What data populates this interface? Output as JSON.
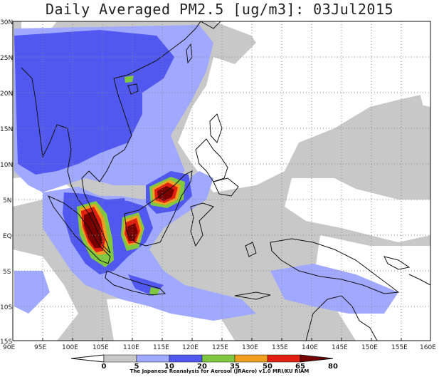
{
  "title": "Daily Averaged PM2.5 [ug/m3]: 03Jul2015",
  "credit": "The Japanese Reanalysis for Aerosol (JRAero) v1.0 MRI/KU RIAM",
  "map": {
    "lon_range": [
      90,
      160
    ],
    "lat_range": [
      -15,
      30
    ],
    "lon_ticks": [
      "90E",
      "95E",
      "100E",
      "105E",
      "110E",
      "115E",
      "120E",
      "125E",
      "130E",
      "135E",
      "140E",
      "145E",
      "150E",
      "155E",
      "160E"
    ],
    "lat_ticks": [
      "30N",
      "25N",
      "20N",
      "15N",
      "10N",
      "5N",
      "EQ",
      "5S",
      "10S",
      "15S"
    ]
  },
  "colorbar": {
    "levels": [
      "0",
      "5",
      "10",
      "20",
      "35",
      "50",
      "65",
      "80"
    ],
    "colors": [
      "#ffffff",
      "#c8c8c8",
      "#a0a8ff",
      "#5058f0",
      "#80c840",
      "#f0a020",
      "#e02010",
      "#780000"
    ]
  }
}
